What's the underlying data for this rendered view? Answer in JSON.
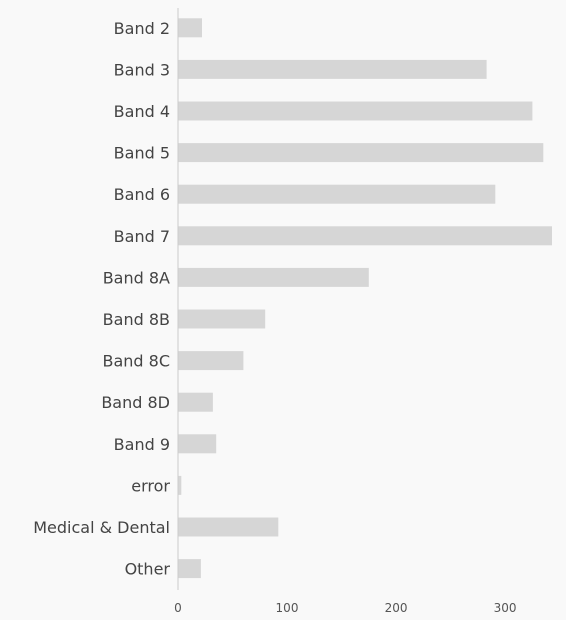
{
  "chart_data": {
    "type": "bar",
    "orientation": "horizontal",
    "categories": [
      "Band 2",
      "Band 3",
      "Band 4",
      "Band 5",
      "Band 6",
      "Band 7",
      "Band 8A",
      "Band 8B",
      "Band 8C",
      "Band 8D",
      "Band 9",
      "error",
      "Medical & Dental",
      "Other"
    ],
    "values": [
      22,
      283,
      325,
      335,
      291,
      343,
      175,
      80,
      60,
      32,
      35,
      3,
      92,
      21
    ],
    "title": "",
    "xlabel": "",
    "ylabel": "",
    "xlim": [
      0,
      343
    ],
    "xticks": [
      "0",
      "100",
      "200",
      "300"
    ],
    "grid": false,
    "legend": "none",
    "bar_color": "#d6d6d6",
    "axis_color": "#cccccc"
  }
}
